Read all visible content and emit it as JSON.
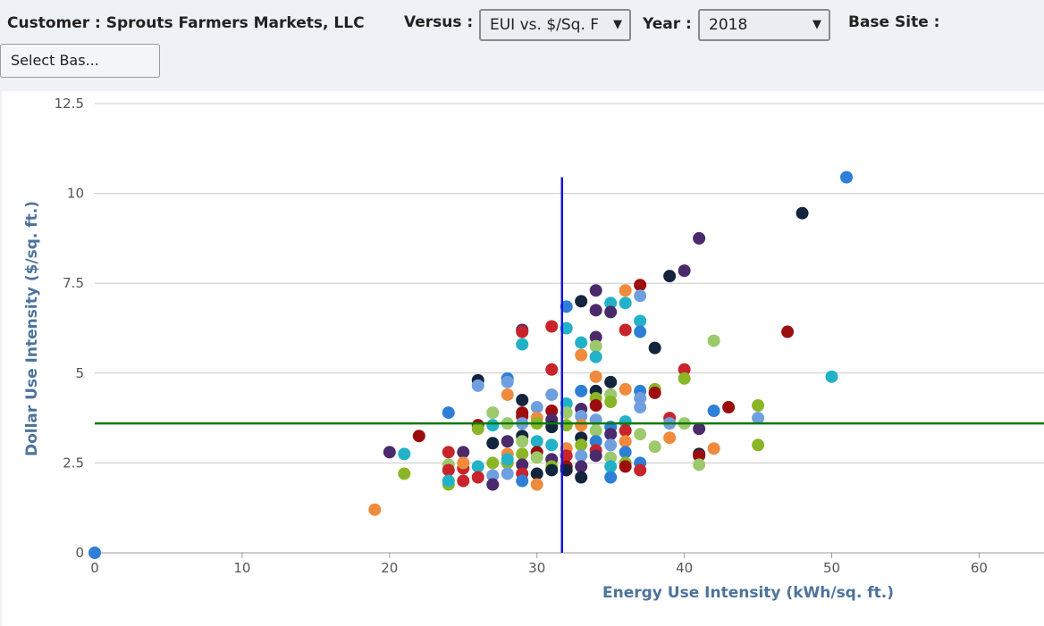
{
  "header": {
    "customer": "Customer : Sprouts Farmers Markets, LLC",
    "versus_label": "Versus :",
    "versus_value": "EUI vs. $/Sq. F",
    "year_label": "Year :",
    "year_value": "2018",
    "base_site_label": "Base Site :",
    "base_site_button": "Select Bas..."
  },
  "chart_data": {
    "type": "scatter",
    "x_label": "Energy Use Intensity (kWh/sq. ft.)",
    "y_label": "Dollar Use Intensity ($/sq. ft.)",
    "xlim": [
      0,
      64.4
    ],
    "ylim": [
      0,
      12.5
    ],
    "xticks": [
      0,
      10,
      20,
      30,
      40,
      50,
      60
    ],
    "yticks": [
      0,
      2.5,
      5,
      7.5,
      10,
      12.5
    ],
    "grid": true,
    "reference_lines": {
      "x": 31.7,
      "x_color": "#1414e0",
      "y": 3.6,
      "y_color": "#0b7a0b"
    },
    "x": [
      0,
      19,
      20,
      21,
      21,
      22,
      24,
      24,
      24,
      24,
      24,
      24,
      25,
      25,
      25,
      25,
      26,
      26,
      26,
      26,
      26,
      26,
      27,
      27,
      27,
      27,
      27,
      27,
      28,
      28,
      28,
      28,
      28,
      28,
      28,
      28,
      28,
      29,
      29,
      29,
      29,
      29,
      29,
      29,
      29,
      29,
      29,
      29,
      29,
      29,
      30,
      30,
      30,
      30,
      30,
      30,
      30,
      30,
      31,
      31,
      31,
      31,
      31,
      31,
      31,
      31,
      31,
      31,
      32,
      32,
      32,
      32,
      32,
      32,
      32,
      32,
      32,
      33,
      33,
      33,
      33,
      33,
      33,
      33,
      33,
      33,
      33,
      33,
      33,
      34,
      34,
      34,
      34,
      34,
      34,
      34,
      34,
      34,
      34,
      34,
      34,
      34,
      34,
      35,
      35,
      35,
      35,
      35,
      35,
      35,
      35,
      35,
      35,
      35,
      36,
      36,
      36,
      36,
      36,
      36,
      36,
      36,
      36,
      36,
      37,
      37,
      37,
      37,
      37,
      37,
      37,
      37,
      37,
      37,
      38,
      38,
      38,
      38,
      39,
      39,
      39,
      39,
      40,
      40,
      40,
      40,
      41,
      41,
      41,
      41,
      41,
      42,
      42,
      42,
      43,
      45,
      45,
      45,
      47,
      48,
      50,
      51
    ],
    "values": [
      0,
      1.2,
      2.8,
      2.2,
      2.75,
      3.25,
      3.9,
      2.8,
      2.45,
      2.3,
      1.9,
      2.0,
      2.8,
      2.35,
      2.0,
      2.5,
      4.8,
      4.65,
      3.55,
      3.45,
      2.4,
      2.1,
      3.9,
      3.55,
      3.05,
      2.5,
      2.15,
      1.9,
      4.85,
      4.75,
      4.4,
      3.6,
      3.1,
      2.75,
      2.5,
      2.2,
      2.6,
      6.2,
      6.15,
      5.8,
      4.25,
      3.9,
      3.8,
      3.6,
      3.25,
      3.1,
      2.75,
      2.45,
      2.2,
      2.0,
      4.05,
      3.75,
      3.6,
      3.1,
      2.8,
      2.65,
      2.2,
      1.9,
      6.3,
      5.1,
      4.4,
      3.95,
      3.7,
      3.5,
      3.0,
      2.6,
      2.4,
      2.3,
      6.85,
      6.25,
      4.15,
      3.9,
      3.55,
      2.9,
      2.7,
      2.4,
      2.3,
      7.0,
      5.85,
      5.5,
      4.5,
      4.0,
      3.8,
      3.55,
      3.2,
      3.0,
      2.7,
      2.4,
      2.1,
      7.3,
      6.75,
      6.0,
      5.75,
      5.45,
      4.9,
      4.5,
      4.3,
      4.1,
      3.7,
      3.4,
      3.1,
      2.85,
      2.7,
      6.95,
      6.7,
      4.75,
      4.4,
      4.2,
      3.5,
      3.3,
      3.0,
      2.65,
      2.4,
      2.1,
      7.3,
      6.95,
      6.2,
      4.55,
      3.65,
      3.4,
      3.1,
      2.8,
      2.5,
      2.4,
      7.45,
      7.15,
      6.45,
      6.15,
      4.5,
      4.3,
      4.05,
      3.3,
      2.5,
      2.3,
      5.7,
      4.55,
      4.45,
      2.95,
      7.7,
      3.75,
      3.6,
      3.2,
      7.85,
      5.1,
      4.85,
      3.6,
      8.75,
      3.45,
      2.75,
      2.7,
      2.45,
      5.9,
      3.95,
      2.9,
      4.05,
      4.1,
      3.75,
      3.0,
      6.15,
      9.45,
      4.9,
      10.45
    ],
    "colors": [
      "#2e7fd6",
      "#f08a3c",
      "#4b2a6b",
      "#8ab626",
      "#22b2c8",
      "#9c0e0e",
      "#2e7fd6",
      "#c8242b",
      "#9cc96b",
      "#c8242b",
      "#8ab626",
      "#22b2c8",
      "#4b2a6b",
      "#c8242b",
      "#c8242b",
      "#f08a3c",
      "#13253d",
      "#6f9fdf",
      "#9c0e0e",
      "#8ab626",
      "#22b2c8",
      "#c8242b",
      "#9cc96b",
      "#22b2c8",
      "#13253d",
      "#8ab626",
      "#6f9fdf",
      "#4b2a6b",
      "#2e7fd6",
      "#6f9fdf",
      "#f08a3c",
      "#9cc96b",
      "#4b2a6b",
      "#f08a3c",
      "#8ab626",
      "#6f9fdf",
      "#22b2c8",
      "#4b2a6b",
      "#c8242b",
      "#22b2c8",
      "#13253d",
      "#9c0e0e",
      "#9c0e0e",
      "#6f9fdf",
      "#13253d",
      "#9cc96b",
      "#8ab626",
      "#4b2a6b",
      "#c8242b",
      "#2e7fd6",
      "#6f9fdf",
      "#f08a3c",
      "#8ab626",
      "#22b2c8",
      "#9c0e0e",
      "#9cc96b",
      "#13253d",
      "#f08a3c",
      "#c8242b",
      "#c8242b",
      "#6f9fdf",
      "#9c0e0e",
      "#4b2a6b",
      "#13253d",
      "#22b2c8",
      "#4b2a6b",
      "#8ab626",
      "#13253d",
      "#2e7fd6",
      "#22b2c8",
      "#22b2c8",
      "#9cc96b",
      "#8ab626",
      "#f08a3c",
      "#c8242b",
      "#9c0e0e",
      "#13253d",
      "#13253d",
      "#22b2c8",
      "#f08a3c",
      "#2e7fd6",
      "#4b2a6b",
      "#6f9fdf",
      "#f08a3c",
      "#13253d",
      "#8ab626",
      "#6f9fdf",
      "#4b2a6b",
      "#13253d",
      "#4b2a6b",
      "#4b2a6b",
      "#4b2a6b",
      "#9cc96b",
      "#22b2c8",
      "#f08a3c",
      "#13253d",
      "#8ab626",
      "#9c0e0e",
      "#6f9fdf",
      "#9cc96b",
      "#2e7fd6",
      "#c8242b",
      "#4b2a6b",
      "#22b2c8",
      "#4b2a6b",
      "#13253d",
      "#9cc96b",
      "#8ab626",
      "#2e7fd6",
      "#4b2a6b",
      "#6f9fdf",
      "#9cc96b",
      "#22b2c8",
      "#2e7fd6",
      "#f08a3c",
      "#22b2c8",
      "#c8242b",
      "#f08a3c",
      "#22b2c8",
      "#c8242b",
      "#f08a3c",
      "#2e7fd6",
      "#8ab626",
      "#9c0e0e",
      "#9c0e0e",
      "#6f9fdf",
      "#22b2c8",
      "#2e7fd6",
      "#2e7fd6",
      "#6f9fdf",
      "#6f9fdf",
      "#9cc96b",
      "#2e7fd6",
      "#c8242b",
      "#13253d",
      "#8ab626",
      "#9c0e0e",
      "#9cc96b",
      "#13253d",
      "#c8242b",
      "#6f9fdf",
      "#f08a3c",
      "#4b2a6b",
      "#c8242b",
      "#8ab626",
      "#9cc96b",
      "#4b2a6b",
      "#4b2a6b",
      "#13253d",
      "#9c0e0e",
      "#9cc96b",
      "#9cc96b",
      "#2e7fd6",
      "#f08a3c",
      "#9c0e0e",
      "#8ab626",
      "#6f9fdf",
      "#8ab626",
      "#9c0e0e",
      "#13253d",
      "#22b2c8",
      "#2e7fd6"
    ]
  }
}
